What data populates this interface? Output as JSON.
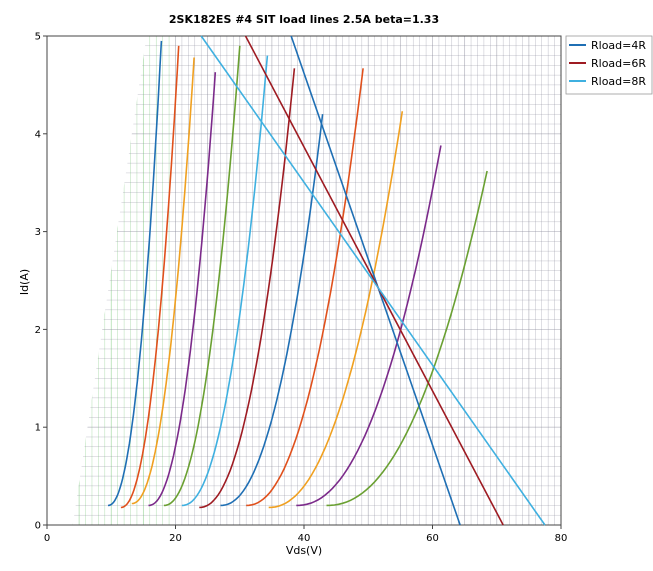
{
  "chart_data": {
    "type": "line",
    "title": "2SK182ES #4 SIT load lines 2.5A beta=1.33",
    "xlabel": "Vds(V)",
    "ylabel": "Id(A)",
    "xlim": [
      0,
      80
    ],
    "ylim": [
      0,
      5
    ],
    "x_ticks": [
      "0",
      "20",
      "40",
      "60",
      "80"
    ],
    "y_ticks": [
      "0",
      "1",
      "2",
      "3",
      "4",
      "5"
    ],
    "grid": true,
    "legend_position": "top-right",
    "load_lines": [
      {
        "name": "Rload=4R",
        "color": "#1f6fb4",
        "points": [
          [
            38,
            5
          ],
          [
            64.3,
            0
          ]
        ]
      },
      {
        "name": "Rload=6R",
        "color": "#9e1b22",
        "points": [
          [
            30.9,
            5
          ],
          [
            71,
            0
          ]
        ]
      },
      {
        "name": "Rload=8R",
        "color": "#3fb0e0",
        "points": [
          [
            24,
            5
          ],
          [
            77.5,
            0
          ]
        ]
      }
    ],
    "characteristic_curves": [
      {
        "color": "#1f6fb4",
        "x0": 9.5,
        "y0": 0.2,
        "x1": 17.8,
        "y1": 4.95,
        "k": 2.2
      },
      {
        "color": "#e0501c",
        "x0": 11.5,
        "y0": 0.18,
        "x1": 20.5,
        "y1": 4.9,
        "k": 2.2
      },
      {
        "color": "#f0a020",
        "x0": 13.2,
        "y0": 0.22,
        "x1": 22.9,
        "y1": 4.78,
        "k": 2.2
      },
      {
        "color": "#7b2a8a",
        "x0": 15.8,
        "y0": 0.2,
        "x1": 26.2,
        "y1": 4.63,
        "k": 2.2
      },
      {
        "color": "#6aa032",
        "x0": 18.2,
        "y0": 0.2,
        "x1": 30.0,
        "y1": 4.9,
        "k": 2.2
      },
      {
        "color": "#3fb0e0",
        "x0": 21.0,
        "y0": 0.2,
        "x1": 34.3,
        "y1": 4.8,
        "k": 2.2
      },
      {
        "color": "#9e1b22",
        "x0": 23.7,
        "y0": 0.18,
        "x1": 38.5,
        "y1": 4.67,
        "k": 2.2
      },
      {
        "color": "#1f6fb4",
        "x0": 27.0,
        "y0": 0.2,
        "x1": 42.9,
        "y1": 4.2,
        "k": 2.2
      },
      {
        "color": "#e0501c",
        "x0": 31.0,
        "y0": 0.2,
        "x1": 49.2,
        "y1": 4.67,
        "k": 2.2
      },
      {
        "color": "#f0a020",
        "x0": 34.5,
        "y0": 0.18,
        "x1": 55.3,
        "y1": 4.23,
        "k": 2.2
      },
      {
        "color": "#7b2a8a",
        "x0": 38.8,
        "y0": 0.2,
        "x1": 61.3,
        "y1": 3.88,
        "k": 2.2
      },
      {
        "color": "#6aa032",
        "x0": 43.5,
        "y0": 0.2,
        "x1": 68.5,
        "y1": 3.62,
        "k": 2.2
      }
    ],
    "grid_colors": {
      "grid": "#8a8a9a",
      "grid_faint": "#8ed08e",
      "axis": "#444444"
    }
  }
}
